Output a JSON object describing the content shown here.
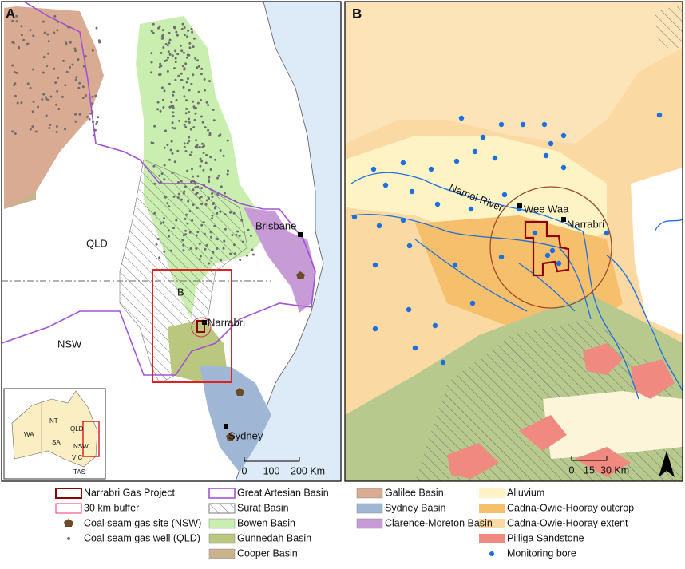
{
  "panel_a": {
    "label": "A",
    "places": {
      "qld": "QLD",
      "nsw": "NSW",
      "brisbane": "Brisbane",
      "narrabri": "Narrabri",
      "sydney": "Sydney",
      "box": "B"
    },
    "inset": [
      "WA",
      "NT",
      "QLD",
      "SA",
      "NSW",
      "VIC",
      "TAS"
    ],
    "scale": [
      "0",
      "100",
      "200 Km"
    ]
  },
  "panel_b": {
    "label": "B",
    "places": {
      "river": "Namoi River",
      "wee_waa": "Wee Waa",
      "narrabri": "Narrabri"
    },
    "scale": [
      "0",
      "15",
      "30 Km"
    ]
  },
  "legend": [
    "Narrabri Gas Project",
    "30 km buffer",
    "Coal seam gas site (NSW)",
    "Coal seam gas well (QLD)",
    "Great Artesian Basin",
    "Surat Basin",
    "Bowen Basin",
    "Gunnedah Basin",
    "Cooper Basin",
    "Galilee Basin",
    "Sydney Basin",
    "Clarence-Moreton Basin",
    "Alluvium",
    "Cadna-Owie-Hooray outcrop",
    "Cadna-Owie-Hooray extent",
    "Pilliga Sandstone",
    "Monitoring bore"
  ]
}
